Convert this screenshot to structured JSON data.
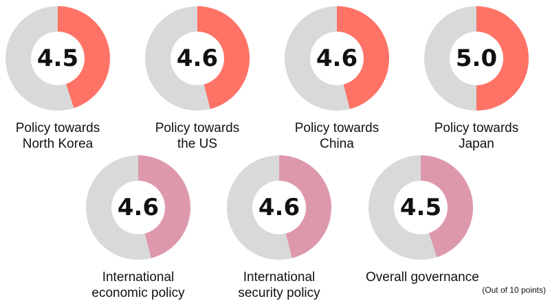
{
  "chart_data": {
    "type": "pie",
    "max": 10,
    "colors": {
      "base": "#d9d9d9",
      "top_row": "#ff7266",
      "bottom_row": "#de98ac",
      "center": "#ffffff"
    },
    "items": [
      {
        "value": 4.5,
        "value_label": "4.5",
        "label_lines": [
          "Policy towards",
          "North Korea"
        ]
      },
      {
        "value": 4.6,
        "value_label": "4.6",
        "label_lines": [
          "Policy towards",
          "the US"
        ]
      },
      {
        "value": 4.6,
        "value_label": "4.6",
        "label_lines": [
          "Policy towards",
          "China"
        ]
      },
      {
        "value": 5.0,
        "value_label": "5.0",
        "label_lines": [
          "Policy towards",
          "Japan"
        ]
      },
      {
        "value": 4.6,
        "value_label": "4.6",
        "label_lines": [
          "International",
          "economic policy"
        ]
      },
      {
        "value": 4.6,
        "value_label": "4.6",
        "label_lines": [
          "International",
          "security policy"
        ]
      },
      {
        "value": 4.5,
        "value_label": "4.5",
        "label_lines": [
          "Overall governance"
        ]
      }
    ],
    "note": "(Out of 10 points)"
  }
}
